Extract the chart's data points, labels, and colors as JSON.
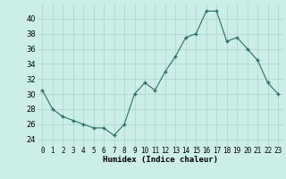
{
  "x": [
    0,
    1,
    2,
    3,
    4,
    5,
    6,
    7,
    8,
    9,
    10,
    11,
    12,
    13,
    14,
    15,
    16,
    17,
    18,
    19,
    20,
    21,
    22,
    23
  ],
  "y": [
    30.5,
    28,
    27,
    26.5,
    26,
    25.5,
    25.5,
    24.5,
    26,
    30,
    31.5,
    30.5,
    33,
    35,
    37.5,
    38,
    41,
    41,
    37,
    37.5,
    36,
    34.5,
    31.5,
    30
  ],
  "line_color": "#2a6e62",
  "marker_color": "#2a6e62",
  "bg_color": "#cceee8",
  "grid_color": "#aad4cc",
  "xlabel": "Humidex (Indice chaleur)",
  "ylim": [
    23,
    42
  ],
  "xlim": [
    -0.5,
    23.5
  ],
  "yticks": [
    24,
    26,
    28,
    30,
    32,
    34,
    36,
    38,
    40
  ],
  "xtick_labels": [
    "0",
    "1",
    "2",
    "3",
    "4",
    "5",
    "6",
    "7",
    "8",
    "9",
    "10",
    "11",
    "12",
    "13",
    "14",
    "15",
    "16",
    "17",
    "18",
    "19",
    "20",
    "21",
    "22",
    "23"
  ],
  "xlabel_fontsize": 6.5,
  "ytick_fontsize": 6,
  "xtick_fontsize": 5.5
}
